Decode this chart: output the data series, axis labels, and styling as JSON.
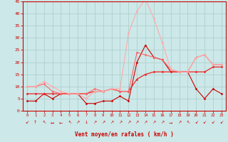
{
  "xlabel": "Vent moyen/en rafales ( km/h )",
  "bg_color": "#cce8e8",
  "grid_color": "#aacccc",
  "xlim": [
    -0.5,
    23.5
  ],
  "ylim": [
    0,
    45
  ],
  "yticks": [
    0,
    5,
    10,
    15,
    20,
    25,
    30,
    35,
    40,
    45
  ],
  "xticks": [
    0,
    1,
    2,
    3,
    4,
    5,
    6,
    7,
    8,
    9,
    10,
    11,
    12,
    13,
    14,
    15,
    16,
    17,
    18,
    19,
    20,
    21,
    22,
    23
  ],
  "lines": [
    {
      "x": [
        0,
        1,
        2,
        3,
        4,
        5,
        6,
        7,
        8,
        9,
        10,
        11,
        12,
        13,
        14,
        15,
        16,
        17,
        18,
        19,
        20,
        21,
        22,
        23
      ],
      "y": [
        4,
        4,
        7,
        5,
        7,
        7,
        7,
        3,
        3,
        4,
        4,
        6,
        4,
        20,
        27,
        22,
        21,
        16,
        16,
        16,
        9,
        5,
        9,
        7
      ],
      "color": "#cc0000",
      "lw": 0.8,
      "marker": "D",
      "ms": 1.5
    },
    {
      "x": [
        0,
        1,
        2,
        3,
        4,
        5,
        6,
        7,
        8,
        9,
        10,
        11,
        12,
        13,
        14,
        15,
        16,
        17,
        18,
        19,
        20,
        21,
        22,
        23
      ],
      "y": [
        7,
        7,
        7,
        7,
        7,
        7,
        7,
        7,
        8,
        8,
        9,
        8,
        8,
        13,
        15,
        16,
        16,
        16,
        16,
        16,
        16,
        16,
        18,
        18
      ],
      "color": "#ee2222",
      "lw": 0.9,
      "marker": "D",
      "ms": 1.5
    },
    {
      "x": [
        0,
        1,
        2,
        3,
        4,
        5,
        6,
        7,
        8,
        9,
        10,
        11,
        12,
        13,
        14,
        15,
        16,
        17,
        18,
        19,
        20,
        21,
        22,
        23
      ],
      "y": [
        10,
        10,
        11,
        8,
        7,
        7,
        7,
        7,
        9,
        8,
        9,
        8,
        8,
        24,
        23,
        22,
        21,
        17,
        16,
        16,
        22,
        23,
        19,
        19
      ],
      "color": "#ff6666",
      "lw": 0.8,
      "marker": "D",
      "ms": 1.5
    },
    {
      "x": [
        0,
        1,
        2,
        3,
        4,
        5,
        6,
        7,
        8,
        9,
        10,
        11,
        12,
        13,
        14,
        15,
        16,
        17,
        18,
        19,
        20,
        21,
        22,
        23
      ],
      "y": [
        10,
        10,
        12,
        10,
        8,
        7,
        7,
        5,
        8,
        8,
        9,
        9,
        32,
        41,
        46,
        38,
        28,
        17,
        16,
        16,
        22,
        23,
        19,
        19
      ],
      "color": "#ffaaaa",
      "lw": 0.8,
      "marker": "D",
      "ms": 1.5
    }
  ],
  "arrow_symbols": [
    "↙",
    "↑",
    "↖",
    "↔",
    "←",
    "↖",
    "↗",
    "↓",
    "↗",
    "↗",
    "↗",
    "↗",
    "↗",
    "↗",
    "↗",
    "↗",
    "↗",
    "→",
    "↗",
    "↖",
    "↙",
    "↙",
    "↙",
    "↙"
  ]
}
